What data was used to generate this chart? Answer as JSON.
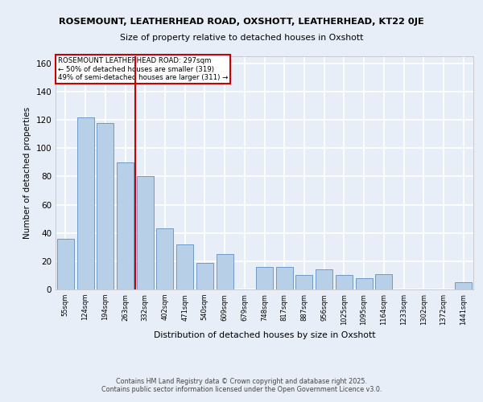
{
  "title_line1": "ROSEMOUNT, LEATHERHEAD ROAD, OXSHOTT, LEATHERHEAD, KT22 0JE",
  "title_line2": "Size of property relative to detached houses in Oxshott",
  "xlabel": "Distribution of detached houses by size in Oxshott",
  "ylabel": "Number of detached properties",
  "categories": [
    "55sqm",
    "124sqm",
    "194sqm",
    "263sqm",
    "332sqm",
    "402sqm",
    "471sqm",
    "540sqm",
    "609sqm",
    "679sqm",
    "748sqm",
    "817sqm",
    "887sqm",
    "956sqm",
    "1025sqm",
    "1095sqm",
    "1164sqm",
    "1233sqm",
    "1302sqm",
    "1372sqm",
    "1441sqm"
  ],
  "values": [
    36,
    122,
    118,
    90,
    80,
    43,
    32,
    19,
    25,
    0,
    16,
    16,
    10,
    14,
    10,
    8,
    11,
    0,
    0,
    0,
    5
  ],
  "bar_color": "#b8cfe8",
  "bar_edge_color": "#6090c0",
  "background_color": "#e8eef7",
  "grid_color": "#ffffff",
  "redline_x": 3.5,
  "annotation_text_line1": "ROSEMOUNT LEATHERHEAD ROAD: 297sqm",
  "annotation_text_line2": "← 50% of detached houses are smaller (319)",
  "annotation_text_line3": "49% of semi-detached houses are larger (311) →",
  "annotation_box_facecolor": "#ffffff",
  "annotation_box_edgecolor": "#cc0000",
  "ylim": [
    0,
    165
  ],
  "yticks": [
    0,
    20,
    40,
    60,
    80,
    100,
    120,
    140,
    160
  ],
  "footer_line1": "Contains HM Land Registry data © Crown copyright and database right 2025.",
  "footer_line2": "Contains public sector information licensed under the Open Government Licence v3.0."
}
